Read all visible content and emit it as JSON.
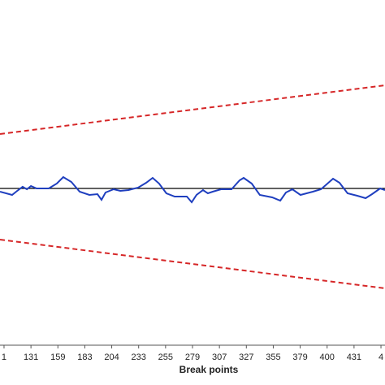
{
  "chart_data": {
    "type": "line",
    "x_label": "Break points",
    "xlim": [
      -0.15,
      14.15
    ],
    "xticks": [
      {
        "value": 0,
        "label": "1"
      },
      {
        "value": 1,
        "label": "131"
      },
      {
        "value": 2,
        "label": "159"
      },
      {
        "value": 3,
        "label": "183"
      },
      {
        "value": 4,
        "label": "204"
      },
      {
        "value": 5,
        "label": "233"
      },
      {
        "value": 6,
        "label": "255"
      },
      {
        "value": 7,
        "label": "279"
      },
      {
        "value": 8,
        "label": "307"
      },
      {
        "value": 9,
        "label": "327"
      },
      {
        "value": 10,
        "label": "355"
      },
      {
        "value": 11,
        "label": "379"
      },
      {
        "value": 12,
        "label": "400"
      },
      {
        "value": 13,
        "label": "431"
      },
      {
        "value": 14,
        "label": "4"
      }
    ],
    "ylim": [
      -1.93,
      2.32
    ],
    "series": [
      {
        "color": "#d62728",
        "dash": true,
        "x": [
          -0.15,
          14.15
        ],
        "values": [
          0.67,
          1.27
        ]
      },
      {
        "color": "#d62728",
        "dash": true,
        "x": [
          -0.15,
          14.15
        ],
        "values": [
          -0.63,
          -1.23
        ]
      },
      {
        "color": "#000000",
        "dash": false,
        "x": [
          -0.15,
          14.15
        ],
        "values": [
          0,
          0
        ]
      },
      {
        "color": "#1f3fbf",
        "dash": false,
        "x": [
          -0.15,
          0.3,
          0.45,
          0.69,
          0.85,
          1.0,
          1.21,
          1.66,
          1.96,
          2.2,
          2.5,
          2.81,
          3.17,
          3.47,
          3.62,
          3.77,
          4.07,
          4.32,
          4.62,
          4.98,
          5.28,
          5.52,
          5.76,
          6.03,
          6.34,
          6.79,
          6.97,
          7.15,
          7.39,
          7.57,
          7.75,
          8.06,
          8.45,
          8.75,
          8.9,
          9.2,
          9.5,
          9.96,
          10.26,
          10.47,
          10.71,
          11.01,
          11.47,
          11.77,
          11.98,
          12.22,
          12.46,
          12.76,
          13.12,
          13.43,
          13.67,
          13.97,
          14.15
        ],
        "values": [
          -0.04,
          -0.08,
          -0.04,
          0.02,
          -0.01,
          0.03,
          0.0,
          0.0,
          0.06,
          0.14,
          0.08,
          -0.04,
          -0.08,
          -0.07,
          -0.14,
          -0.05,
          -0.01,
          -0.03,
          -0.02,
          0.01,
          0.07,
          0.13,
          0.06,
          -0.06,
          -0.1,
          -0.1,
          -0.17,
          -0.08,
          -0.02,
          -0.06,
          -0.04,
          -0.01,
          -0.01,
          0.1,
          0.13,
          0.06,
          -0.08,
          -0.11,
          -0.15,
          -0.05,
          -0.01,
          -0.08,
          -0.04,
          -0.01,
          0.05,
          0.12,
          0.07,
          -0.06,
          -0.09,
          -0.12,
          -0.07,
          0.0,
          -0.02
        ]
      }
    ]
  }
}
